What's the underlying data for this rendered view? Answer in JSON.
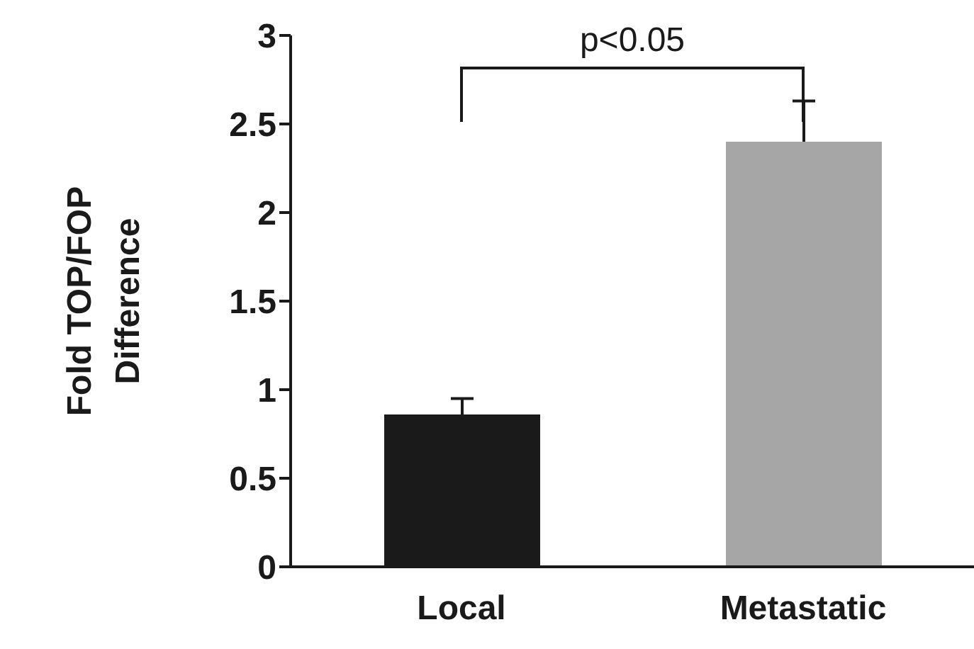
{
  "chart_data": {
    "type": "bar",
    "ylabel": "Fold TOP/FOP Difference",
    "categories": [
      "Local",
      "Metastatic"
    ],
    "values": [
      0.86,
      2.4
    ],
    "colors": [
      "#1a1a1a",
      "#a6a6a6"
    ],
    "errors": [
      [
        0.86,
        0.95
      ],
      [
        2.4,
        2.63
      ]
    ],
    "ylim": [
      0,
      3
    ],
    "yticks": [
      0,
      0.5,
      1,
      1.5,
      2,
      2.5,
      3
    ],
    "annotations": [
      "p<0.05"
    ]
  }
}
